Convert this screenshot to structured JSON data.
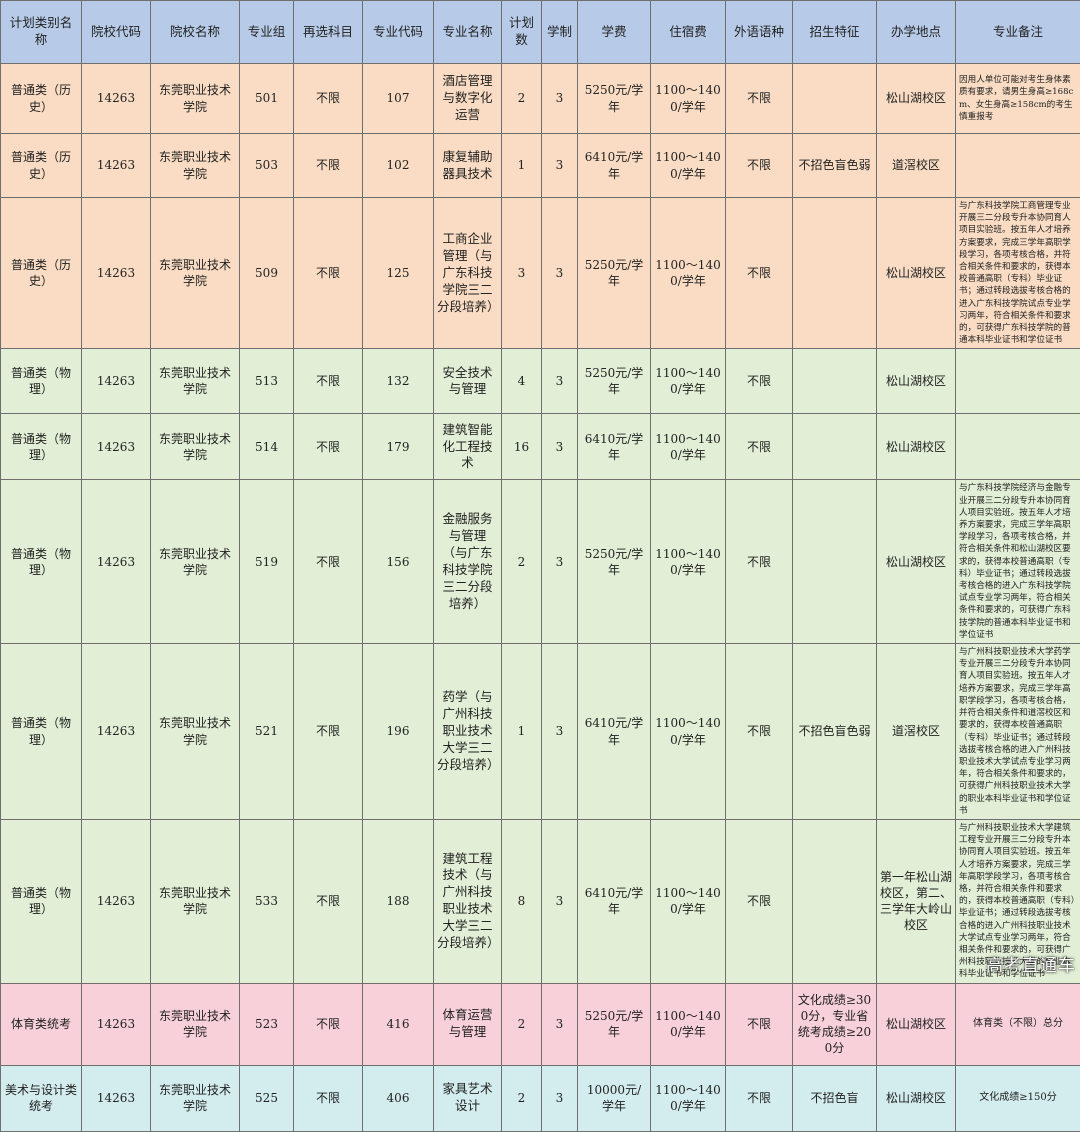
{
  "headers": [
    "计划类别名称",
    "院校代码",
    "院校名称",
    "专业组",
    "再选科目",
    "专业代码",
    "专业名称",
    "计划数",
    "学制",
    "学费",
    "住宿费",
    "外语语种",
    "招生特征",
    "办学地点",
    "专业备注"
  ],
  "colors": {
    "header": "#b7cbe8",
    "history": "#f9dcc3",
    "physics": "#e2efd6",
    "sports": "#f7d0da",
    "art": "#d3ecee",
    "border": "#6f6f6f"
  },
  "rows": [
    {
      "category": "普通类（历史）",
      "school_code": "14263",
      "school": "东莞职业技术学院",
      "group": "501",
      "subject_req": "不限",
      "major_code": "107",
      "major": "酒店管理与数字化运营",
      "plan": "2",
      "years": "3",
      "tuition": "5250元/学年",
      "dorm": "1100～1400/学年",
      "language": "不限",
      "feature": "",
      "location": "松山湖校区",
      "note": "因用人单位可能对考生身体素质有要求，请男生身高≥168cm、女生身高≥158cm的考生慎重报考"
    },
    {
      "category": "普通类（历史）",
      "school_code": "14263",
      "school": "东莞职业技术学院",
      "group": "503",
      "subject_req": "不限",
      "major_code": "102",
      "major": "康复辅助器具技术",
      "plan": "1",
      "years": "3",
      "tuition": "6410元/学年",
      "dorm": "1100～1400/学年",
      "language": "不限",
      "feature": "不招色盲色弱",
      "location": "道滘校区",
      "note": ""
    },
    {
      "category": "普通类（历史）",
      "school_code": "14263",
      "school": "东莞职业技术学院",
      "group": "509",
      "subject_req": "不限",
      "major_code": "125",
      "major": "工商企业管理（与广东科技学院三二分段培养）",
      "plan": "3",
      "years": "3",
      "tuition": "5250元/学年",
      "dorm": "1100～1400/学年",
      "language": "不限",
      "feature": "",
      "location": "松山湖校区",
      "note": "与广东科技学院工商管理专业开展三二分段专升本协同育人项目实验班。按五年人才培养方案要求，完成三学年高职学段学习，各项考核合格，并符合相关条件和要求的，获得本校普通高职（专科）毕业证书；通过转段选拔考核合格的进入广东科技学院试点专业学习两年，符合相关条件和要求的，可获得广东科技学院的普通本科毕业证书和学位证书"
    },
    {
      "category": "普通类（物理）",
      "school_code": "14263",
      "school": "东莞职业技术学院",
      "group": "513",
      "subject_req": "不限",
      "major_code": "132",
      "major": "安全技术与管理",
      "plan": "4",
      "years": "3",
      "tuition": "5250元/学年",
      "dorm": "1100～1400/学年",
      "language": "不限",
      "feature": "",
      "location": "松山湖校区",
      "note": ""
    },
    {
      "category": "普通类（物理）",
      "school_code": "14263",
      "school": "东莞职业技术学院",
      "group": "514",
      "subject_req": "不限",
      "major_code": "179",
      "major": "建筑智能化工程技术",
      "plan": "16",
      "years": "3",
      "tuition": "6410元/学年",
      "dorm": "1100～1400/学年",
      "language": "不限",
      "feature": "",
      "location": "松山湖校区",
      "note": ""
    },
    {
      "category": "普通类（物理）",
      "school_code": "14263",
      "school": "东莞职业技术学院",
      "group": "519",
      "subject_req": "不限",
      "major_code": "156",
      "major": "金融服务与管理（与广东科技学院三二分段培养）",
      "plan": "2",
      "years": "3",
      "tuition": "5250元/学年",
      "dorm": "1100～1400/学年",
      "language": "不限",
      "feature": "",
      "location": "松山湖校区",
      "note": "与广东科技学院经济与金融专业开展三二分段专升本协同育人项目实验班。按五年人才培养方案要求，完成三学年高职学段学习，各项考核合格，并符合相关条件和松山湖校区要求的，获得本校普通高职（专科）毕业证书；通过转段选拔考核合格的进入广东科技学院试点专业学习两年，符合相关条件和要求的，可获得广东科技学院的普通本科毕业证书和学位证书"
    },
    {
      "category": "普通类（物理）",
      "school_code": "14263",
      "school": "东莞职业技术学院",
      "group": "521",
      "subject_req": "不限",
      "major_code": "196",
      "major": "药学（与广州科技职业技术大学三二分段培养）",
      "plan": "1",
      "years": "3",
      "tuition": "6410元/学年",
      "dorm": "1100～1400/学年",
      "language": "不限",
      "feature": "不招色盲色弱",
      "location": "道滘校区",
      "note": "与广州科技职业技术大学药学专业开展三二分段专升本协同育人项目实验班。按五年人才培养方案要求，完成三学年高职学段学习，各项考核合格，并符合相关条件和道滘校区和要求的，获得本校普通高职（专科）毕业证书；通过转段选拔考核合格的进入广州科技职业技术大学试点专业学习两年，符合相关条件和要求的，可获得广州科技职业技术大学的职业本科毕业证书和学位证书"
    },
    {
      "category": "普通类（物理）",
      "school_code": "14263",
      "school": "东莞职业技术学院",
      "group": "533",
      "subject_req": "不限",
      "major_code": "188",
      "major": "建筑工程技术（与广州科技职业技术大学三二分段培养）",
      "plan": "8",
      "years": "3",
      "tuition": "6410元/学年",
      "dorm": "1100～1400/学年",
      "language": "不限",
      "feature": "",
      "location": "第一年松山湖校区，第二、三学年大岭山校区",
      "note": "与广州科技职业技术大学建筑工程专业开展三二分段专升本协同育人项目实验班。按五年人才培养方案要求，完成三学年高职学段学习，各项考核合格，并符合相关条件和要求的，获得本校普通高职（专科）毕业证书；通过转段选拔考核合格的进入广州科技职业技术大学试点专业学习两年，符合相关条件和要求的，可获得广州科技职业技术大学的职业本科毕业证书和学位证书"
    },
    {
      "category": "体育类统考",
      "school_code": "14263",
      "school": "东莞职业技术学院",
      "group": "523",
      "subject_req": "不限",
      "major_code": "416",
      "major": "体育运营与管理",
      "plan": "2",
      "years": "3",
      "tuition": "5250元/学年",
      "dorm": "1100～1400/学年",
      "language": "不限",
      "feature": "文化成绩≥300分，专业省统考成绩≥200分",
      "location": "松山湖校区",
      "note": "体育类（不限）总分"
    },
    {
      "category": "美术与设计类统考",
      "school_code": "14263",
      "school": "东莞职业技术学院",
      "group": "525",
      "subject_req": "不限",
      "major_code": "406",
      "major": "家具艺术设计",
      "plan": "2",
      "years": "3",
      "tuition": "10000元/学年",
      "dorm": "1100～1400/学年",
      "language": "不限",
      "feature": "不招色盲",
      "location": "松山湖校区",
      "note": "文化成绩≥150分"
    }
  ],
  "watermark": "高考直通车"
}
